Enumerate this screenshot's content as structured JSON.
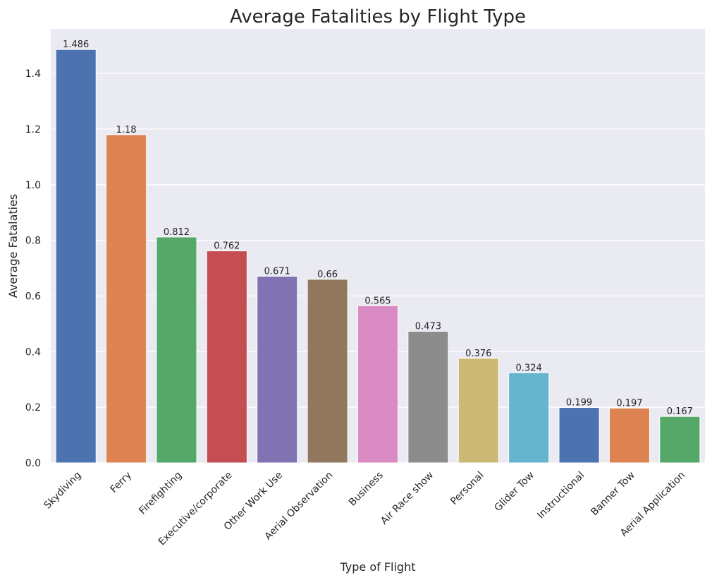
{
  "chart_data": {
    "type": "bar",
    "title": "Average Fatalities by Flight Type",
    "xlabel": "Type of Flight",
    "ylabel": "Average Fatalaties",
    "categories": [
      "Skydiving",
      "Ferry",
      "Firefighting",
      "Executive/corporate",
      "Other Work Use",
      "Aerial Observation",
      "Business",
      "Air Race show",
      "Personal",
      "Glider Tow",
      "Instructional",
      "Banner Tow",
      "Aerial Application"
    ],
    "values": [
      1.486,
      1.18,
      0.812,
      0.762,
      0.671,
      0.66,
      0.565,
      0.473,
      0.376,
      0.324,
      0.199,
      0.197,
      0.167
    ],
    "value_labels": [
      "1.486",
      "1.18",
      "0.812",
      "0.762",
      "0.671",
      "0.66",
      "0.565",
      "0.473",
      "0.376",
      "0.324",
      "0.199",
      "0.197",
      "0.167"
    ],
    "ylim": [
      0,
      1.56
    ],
    "yticks": [
      0.0,
      0.2,
      0.4,
      0.6,
      0.8,
      1.0,
      1.2,
      1.4
    ],
    "ytick_labels": [
      "0.0",
      "0.2",
      "0.4",
      "0.6",
      "0.8",
      "1.0",
      "1.2",
      "1.4"
    ],
    "grid": true,
    "background_color": "#eaeaf2",
    "colors": [
      "#4c72b0",
      "#dd8452",
      "#55a868",
      "#c44e52",
      "#8172b3",
      "#937860",
      "#da8bc3",
      "#8c8c8c",
      "#ccb974",
      "#64b5cd",
      "#4c72b0",
      "#dd8452",
      "#55a868"
    ]
  }
}
